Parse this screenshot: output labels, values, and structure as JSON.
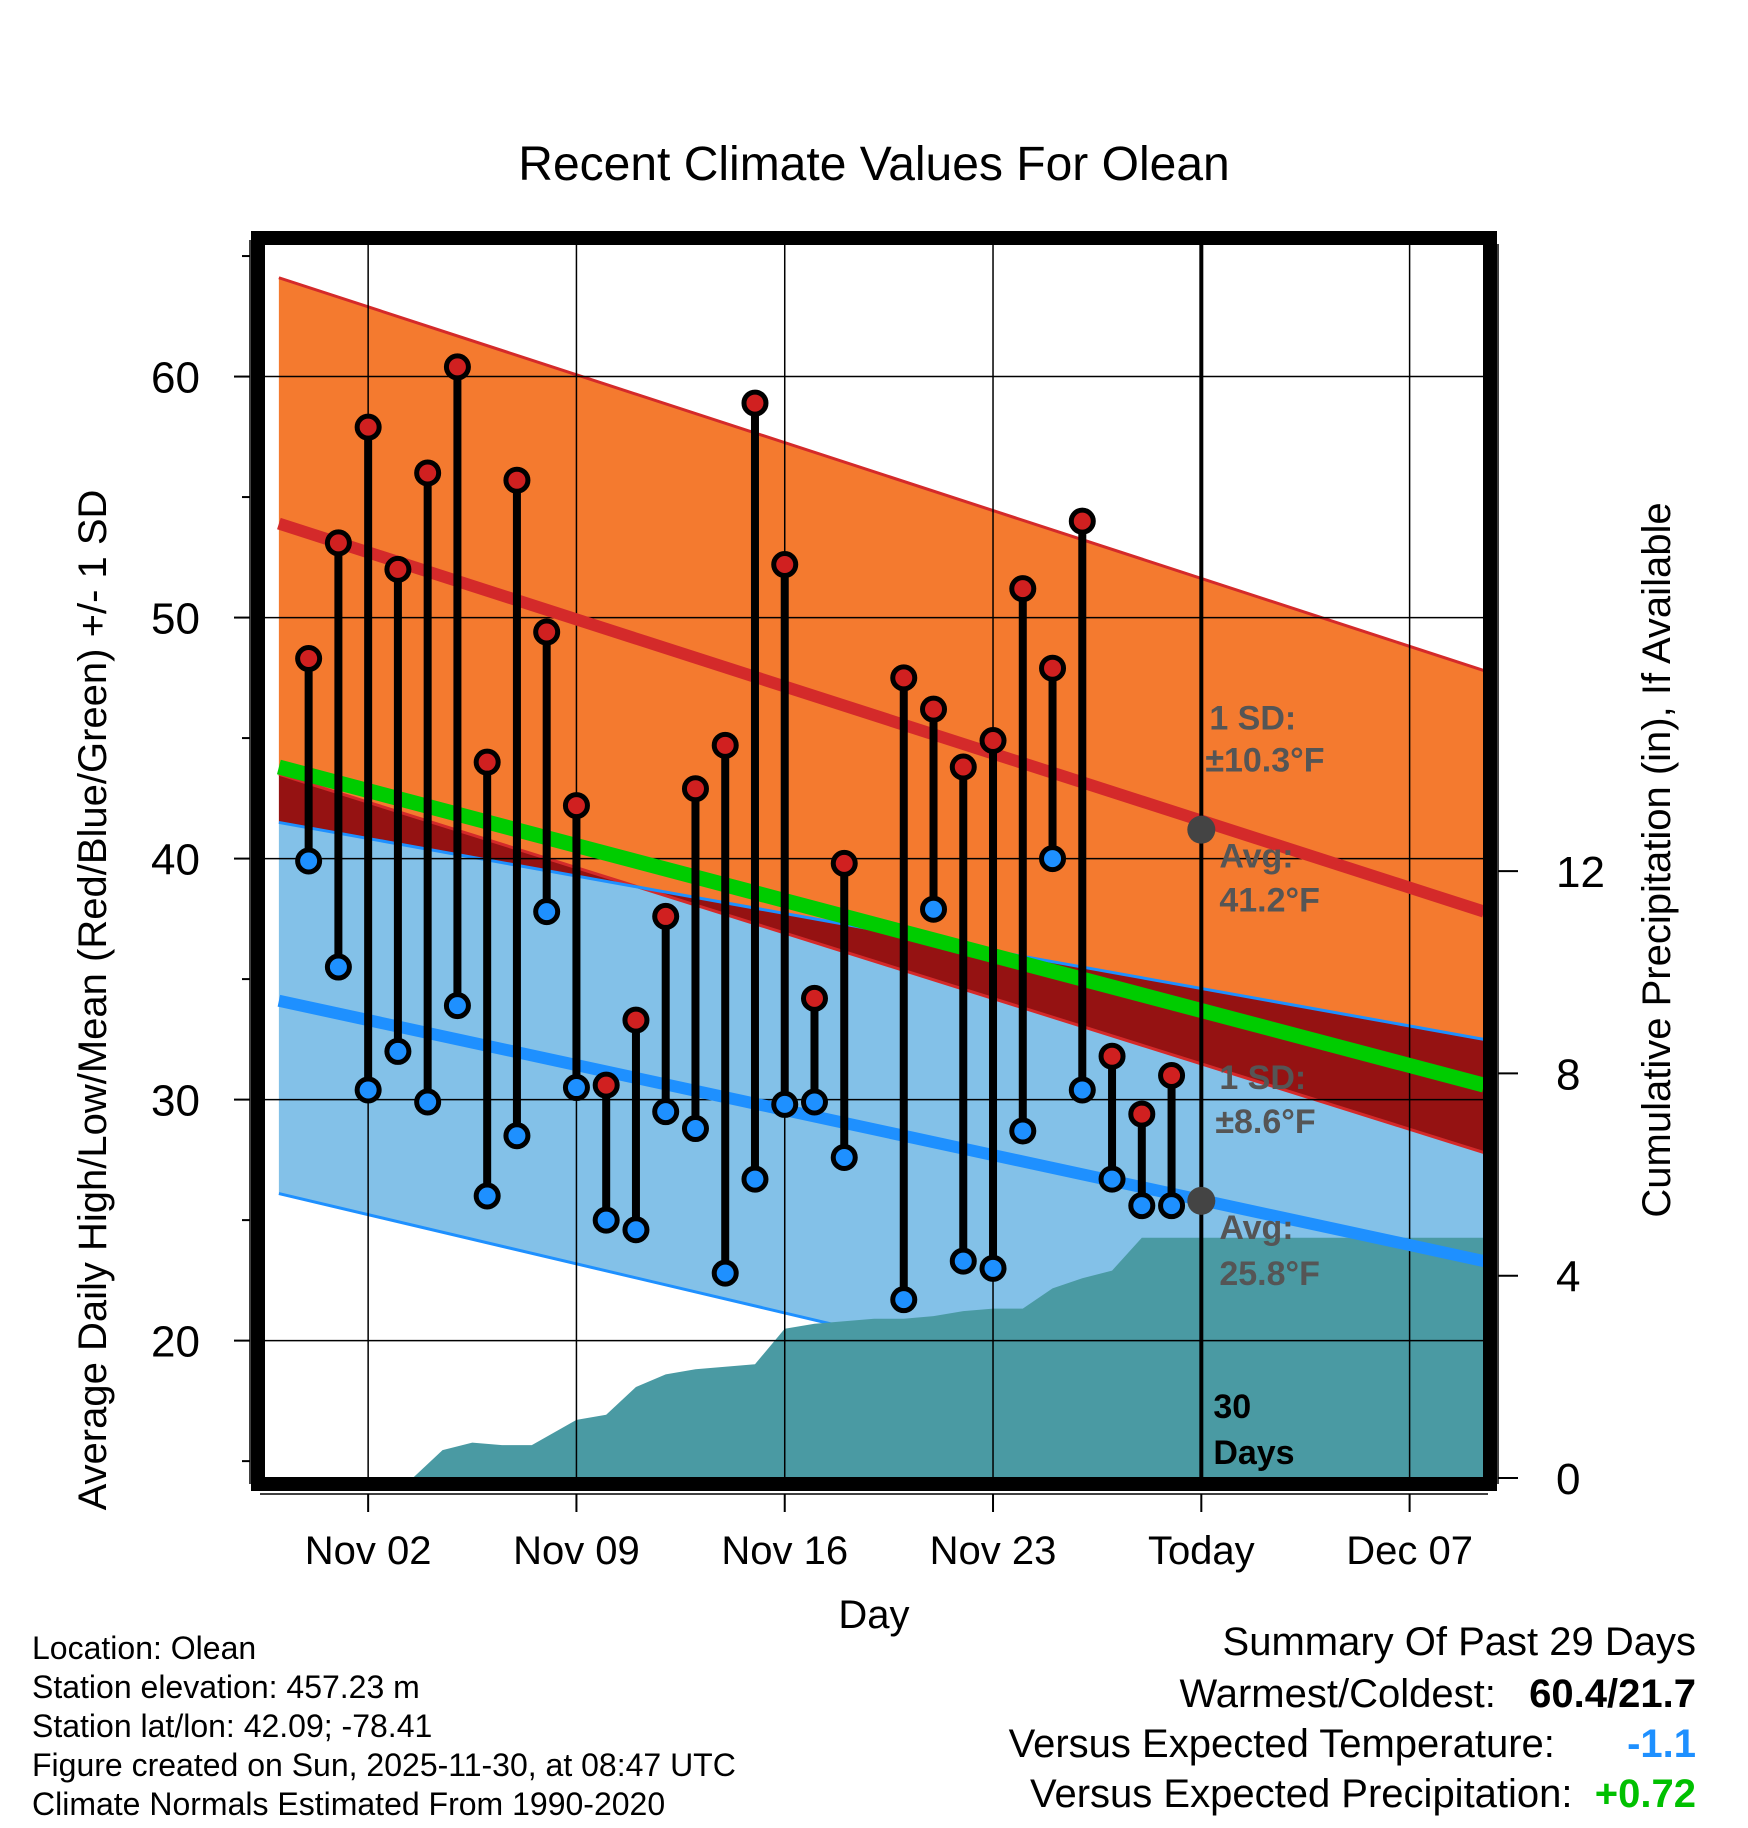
{
  "chart_data": {
    "type": "line",
    "title": "Recent Climate Values For Olean",
    "xlabel": "Day",
    "ylabel_left": "Average Daily High/Low/Mean (Red/Blue/Green) +/- 1 SD",
    "ylabel_right": "Cumulative Precipitation (in), If Available",
    "x_range_days": [
      -31.5,
      9.5
    ],
    "ylim": [
      14.3,
      65.5
    ],
    "y2lim": [
      0,
      24.4
    ],
    "x_ticks": [
      {
        "day": -28,
        "label": "Nov 02"
      },
      {
        "day": -21,
        "label": "Nov 09"
      },
      {
        "day": -14,
        "label": "Nov 16"
      },
      {
        "day": -7,
        "label": "Nov 23"
      },
      {
        "day": 0,
        "label": "Today"
      },
      {
        "day": 7,
        "label": "Dec 07"
      }
    ],
    "y_ticks": [
      20,
      30,
      40,
      50,
      60
    ],
    "y2_ticks": [
      0,
      4,
      8,
      12
    ],
    "normals": {
      "days": [
        -31,
        9.5
      ],
      "high_avg": [
        53.9,
        37.8
      ],
      "high_plus_sd": [
        64.1,
        47.8
      ],
      "high_minus_sd": [
        43.5,
        27.8
      ],
      "low_avg": [
        34.1,
        23.3
      ],
      "low_plus_sd": [
        41.5,
        32.5
      ],
      "low_minus_sd": [
        26.1,
        14.3
      ],
      "mean_avg": [
        43.8,
        30.6
      ]
    },
    "annotations": {
      "high_sd_label": "1 SD:",
      "high_sd_value": "±10.3°F",
      "high_avg_label": "Avg:",
      "high_avg_value": "41.2°F",
      "high_avg_today": 41.2,
      "low_sd_label": "1 SD:",
      "low_sd_value": "±8.6°F",
      "low_avg_label": "Avg:",
      "low_avg_value": "25.8°F",
      "low_avg_today": 25.8,
      "window_label_1": "30",
      "window_label_2": "Days"
    },
    "observations": {
      "days": [
        -30,
        -29,
        -28,
        -27,
        -26,
        -25,
        -24,
        -23,
        -22,
        -21,
        -20,
        -19,
        -18,
        -17,
        -16,
        -15,
        -14,
        -13,
        -12,
        -10,
        -9,
        -8,
        -7,
        -6,
        -5,
        -4,
        -3,
        -2,
        -1
      ],
      "highs": [
        48.3,
        53.1,
        57.9,
        52.0,
        56.0,
        60.4,
        44.0,
        55.7,
        49.4,
        42.2,
        30.6,
        33.3,
        37.6,
        42.9,
        44.7,
        58.9,
        52.2,
        34.2,
        39.8,
        47.5,
        46.2,
        43.8,
        44.9,
        51.2,
        47.9,
        54.0,
        31.8,
        29.4,
        31.0
      ],
      "lows": [
        39.9,
        35.5,
        30.4,
        32.0,
        29.9,
        33.9,
        26.0,
        28.5,
        37.8,
        30.5,
        25.0,
        24.6,
        29.5,
        28.8,
        22.8,
        26.7,
        29.8,
        29.9,
        27.6,
        21.7,
        37.9,
        23.3,
        23.0,
        28.7,
        40.0,
        30.4,
        26.7,
        25.6,
        25.6
      ]
    },
    "precipitation": {
      "days": [
        -31,
        -26.5,
        -25.5,
        -24.5,
        -23.5,
        -22.5,
        -21,
        -20,
        -19,
        -18,
        -17,
        -16,
        -15,
        -14,
        -13,
        -12,
        -11,
        -10,
        -9,
        -8,
        -7,
        -6,
        -5,
        -4,
        -3,
        -2,
        -1,
        0,
        9.5
      ],
      "cumulative_in": [
        0,
        0,
        0.55,
        0.7,
        0.65,
        0.65,
        1.15,
        1.25,
        1.8,
        2.05,
        2.15,
        2.2,
        2.25,
        2.95,
        3.05,
        3.1,
        3.15,
        3.15,
        3.2,
        3.3,
        3.35,
        3.35,
        3.75,
        3.95,
        4.1,
        4.75,
        4.75,
        4.75,
        4.75
      ]
    }
  },
  "info": {
    "location": "Location: Olean",
    "elevation": "Station elevation: 457.23 m",
    "latlon": "Station lat/lon: 42.09; -78.41",
    "created": "Figure created on Sun, 2025-11-30, at 08:47 UTC",
    "normals_period": "Climate Normals Estimated From 1990-2020"
  },
  "summary": {
    "heading": "Summary Of Past 29 Days",
    "warm_cold_label": "Warmest/Coldest:",
    "warm_cold_value": "60.4/21.7",
    "temp_label": "Versus Expected Temperature:",
    "temp_value": "-1.1",
    "precip_label": "Versus Expected Precipitation:",
    "precip_value": "+0.72"
  },
  "colors": {
    "high_band": "#f47a2f",
    "high_line": "#d42a2a",
    "low_band": "#83c1e8",
    "low_line": "#1e90ff",
    "overlap": "#951212",
    "mean_line": "#00cc00",
    "precip": "#4a9aa3",
    "high_dot": "#d02020",
    "low_dot": "#1e90ff",
    "annotation": "#555555",
    "temp_value": "#1e90ff",
    "precip_value": "#00c000"
  }
}
